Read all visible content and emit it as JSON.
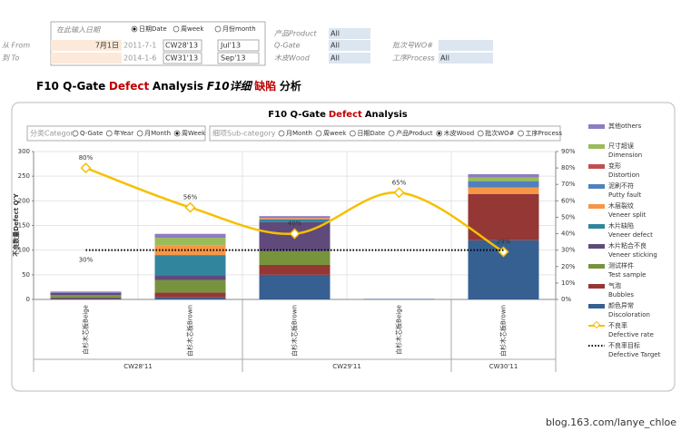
{
  "form": {
    "date_hint": "在此输入日期",
    "mode_options": [
      "日期Date",
      "周week",
      "月份month"
    ],
    "mode_selected": 0,
    "from_label": "从 From",
    "from_date": "7月1日",
    "from_hint": "2011-7-1",
    "from_week": "CW28'13",
    "from_month": "Jul'13",
    "to_label": "到 To",
    "to_hint": "2014-1-6",
    "to_week": "CW31'13",
    "to_month": "Sep'13",
    "filters": [
      {
        "label": "产品Product",
        "value": "All"
      },
      {
        "label": "Q-Gate",
        "value": "All"
      },
      {
        "label": "木皮Wood",
        "value": "All"
      },
      {
        "label": "批次号WO#"
      },
      {
        "label": "工序Process",
        "value": "All"
      }
    ]
  },
  "page_title": [
    {
      "text": "F10 Q-Gate"
    },
    {
      "text": "Defect",
      "color": "#c00000"
    },
    {
      "text": "Analysis"
    },
    {
      "text": "F10详细",
      "italic": true
    },
    {
      "text": "缺陷",
      "color": "#c00000"
    },
    {
      "text": "分析"
    }
  ],
  "chart_data": {
    "type": "bar",
    "stacked": true,
    "title": [
      {
        "text": "F10 Q-Gate"
      },
      {
        "text": "Defect",
        "color": "#c00000"
      },
      {
        "text": "Analysis"
      }
    ],
    "category_label": "分类Category",
    "category_options": [
      "Q-Gate",
      "年Year",
      "月Month",
      "周Week"
    ],
    "category_selected": 3,
    "sub_label": "细项Sub-category",
    "sub_options": [
      "月Month",
      "周week",
      "日期Date",
      "产品Product",
      "木皮Wood",
      "批次WO#",
      "工序Process"
    ],
    "sub_selected": 4,
    "ylabel": "不良数量Defect Q'Y",
    "categories": [
      "白杉木芯板Beige",
      "白杉木芯板Brown",
      "白杉木芯板Brown",
      "白杉木芯板Beige",
      "白杉木芯板Brown"
    ],
    "groups": [
      {
        "label": "CW28'11",
        "span": 2
      },
      {
        "label": "CW29'11",
        "span": 2
      },
      {
        "label": "CW30'11",
        "span": 1
      }
    ],
    "ylim": [
      0,
      300
    ],
    "yticks": [
      0,
      50,
      100,
      150,
      200,
      250,
      300
    ],
    "y2lim": [
      0,
      90
    ],
    "y2ticks": [
      {
        "value": 0,
        "label": "0%"
      },
      {
        "value": 10,
        "label": "10%"
      },
      {
        "value": 20,
        "label": "20%"
      },
      {
        "value": 30,
        "label": "30%"
      },
      {
        "value": 40,
        "label": "40%"
      },
      {
        "value": 50,
        "label": "50%"
      },
      {
        "value": 60,
        "label": "60%"
      },
      {
        "value": 70,
        "label": "70%"
      },
      {
        "value": 80,
        "label": "80%"
      },
      {
        "value": 90,
        "label": "90%"
      }
    ],
    "grid": true,
    "series": [
      {
        "name": "其他others",
        "color": "#8e7cc3",
        "values": [
          3,
          8,
          4,
          0,
          7
        ]
      },
      {
        "name": "尺寸超误",
        "subname": "Dimension",
        "color": "#9bbb59",
        "values": [
          0,
          15,
          0,
          0,
          7
        ]
      },
      {
        "name": "变形",
        "subname": "Distortion",
        "color": "#c0504d",
        "values": [
          0,
          0,
          0,
          0,
          0
        ]
      },
      {
        "name": "泥刷不符",
        "subname": "Putty fault",
        "color": "#4f81bd",
        "values": [
          0,
          0,
          0,
          0,
          13
        ]
      },
      {
        "name": "木层裂纹",
        "subname": "Veneer split",
        "color": "#f79646",
        "values": [
          0,
          20,
          3,
          0,
          13
        ]
      },
      {
        "name": "木片缺陷",
        "subname": "Veneer defect",
        "color": "#31859c",
        "values": [
          0,
          41,
          5,
          0,
          0
        ]
      },
      {
        "name": "木片粘合不良",
        "subname": "Veneer sticking",
        "color": "#604a7b",
        "values": [
          4,
          10,
          59,
          0,
          0
        ]
      },
      {
        "name": "测试样件",
        "subname": "Test sample",
        "color": "#77933c",
        "values": [
          5,
          25,
          28,
          0,
          0
        ]
      },
      {
        "name": "气泡",
        "subname": "Bubbles",
        "color": "#953735",
        "values": [
          2,
          10,
          20,
          0,
          94
        ]
      },
      {
        "name": "颜色异常",
        "subname": "Discoloration",
        "color": "#376092",
        "values": [
          2,
          4,
          50,
          1,
          120
        ]
      },
      {
        "name": "不良率",
        "subname": "Defective rate",
        "type": "line",
        "axis": "y2",
        "color": "#f5c000",
        "values": [
          80,
          56,
          40,
          65,
          29
        ],
        "value_labels": [
          "80%",
          "56%",
          "40%",
          "65%",
          "29%"
        ]
      },
      {
        "name": "不良率目标",
        "subname": "Defective Target",
        "type": "line",
        "style": "dotted",
        "axis": "y2",
        "color": "#000000",
        "values": [
          30,
          30,
          30,
          30,
          30
        ],
        "value_labels": [
          "30%",
          null,
          null,
          null,
          null
        ]
      }
    ]
  },
  "watermark": "blog.163.com/lanye_chloe"
}
